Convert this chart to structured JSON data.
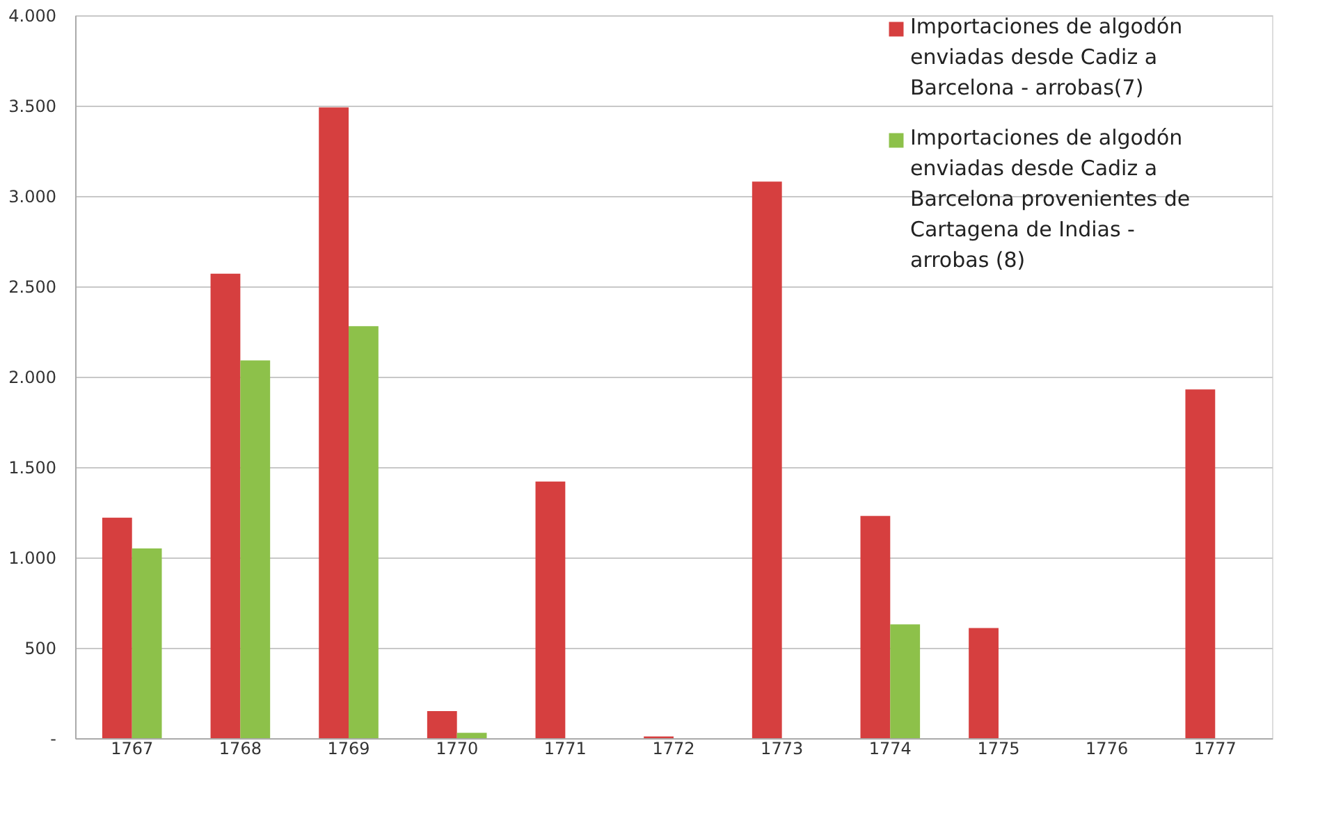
{
  "chart_data": {
    "type": "bar",
    "categories": [
      "1767",
      "1768",
      "1769",
      "1770",
      "1771",
      "1772",
      "1773",
      "1774",
      "1775",
      "1776",
      "1777"
    ],
    "series": [
      {
        "name": "Importaciones de algodón enviadas desde Cadiz a Barcelona - arrobas(7)",
        "color": "#d63f3f",
        "values": [
          1220,
          2570,
          3490,
          150,
          1420,
          10,
          3080,
          1230,
          610,
          null,
          1930
        ]
      },
      {
        "name": "Importaciones de algodón enviadas desde Cadiz a Barcelona provenientes de Cartagena de Indias - arrobas (8)",
        "color": "#8dc14a",
        "values": [
          1050,
          2090,
          2280,
          30,
          null,
          null,
          null,
          630,
          null,
          null,
          null
        ]
      }
    ],
    "ylim": [
      0,
      4000
    ],
    "yticks": [
      {
        "value": 0,
        "label": "-"
      },
      {
        "value": 500,
        "label": "500"
      },
      {
        "value": 1000,
        "label": "1.000"
      },
      {
        "value": 1500,
        "label": "1.500"
      },
      {
        "value": 2000,
        "label": "2.000"
      },
      {
        "value": 2500,
        "label": "2.500"
      },
      {
        "value": 3000,
        "label": "3.000"
      },
      {
        "value": 3500,
        "label": "3.500"
      },
      {
        "value": 4000,
        "label": "4.000"
      }
    ],
    "grid": "y",
    "legend": "top right"
  }
}
